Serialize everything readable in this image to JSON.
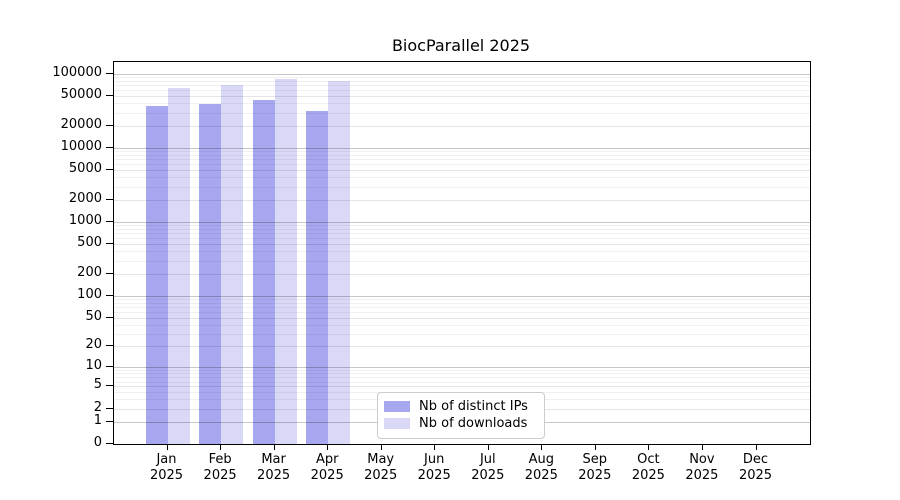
{
  "title": "BiocParallel 2025",
  "colors": {
    "distinct_ips_bar": "#a7a7f0",
    "downloads_bar": "#d9d9f7",
    "axis": "#000000"
  },
  "legend": {
    "items": [
      {
        "label": "Nb of distinct IPs",
        "color_key": "distinct_ips_bar"
      },
      {
        "label": "Nb of downloads",
        "color_key": "downloads_bar"
      }
    ]
  },
  "chart_data": {
    "type": "bar",
    "title": "BiocParallel 2025",
    "categories": [
      "Jan",
      "Feb",
      "Mar",
      "Apr",
      "May",
      "Jun",
      "Jul",
      "Aug",
      "Sep",
      "Oct",
      "Nov",
      "Dec"
    ],
    "year_label": "2025",
    "series": [
      {
        "name": "Nb of distinct IPs",
        "values": [
          37000,
          39500,
          44500,
          32000,
          null,
          null,
          null,
          null,
          null,
          null,
          null,
          null
        ]
      },
      {
        "name": "Nb of downloads",
        "values": [
          64000,
          71000,
          86000,
          80000,
          null,
          null,
          null,
          null,
          null,
          null,
          null,
          null
        ]
      }
    ],
    "y_axis": {
      "scale": "log1p",
      "tick_labels": [
        100000,
        50000,
        20000,
        10000,
        5000,
        2000,
        1000,
        500,
        200,
        100,
        50,
        20,
        10,
        5,
        2,
        1,
        0
      ],
      "max_value": 145000
    },
    "x_axis": {
      "tick_count": 12
    },
    "grid": "horizontal major and minor gridlines, drawn over bars",
    "legend_position": "lower center"
  }
}
